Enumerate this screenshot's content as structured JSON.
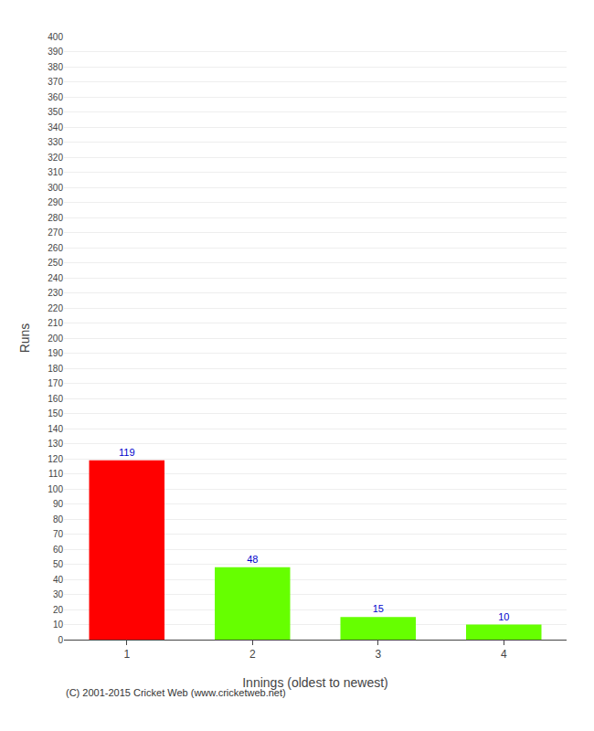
{
  "chart_data": {
    "type": "bar",
    "categories": [
      "1",
      "2",
      "3",
      "4"
    ],
    "values": [
      119,
      48,
      15,
      10
    ],
    "colors": [
      "#ff0000",
      "#66ff00",
      "#66ff00",
      "#66ff00"
    ],
    "xlabel": "Innings (oldest to newest)",
    "ylabel": "Runs",
    "ylim": [
      0,
      400
    ],
    "yticks": [
      0,
      10,
      20,
      30,
      40,
      50,
      60,
      70,
      80,
      90,
      100,
      110,
      120,
      130,
      140,
      150,
      160,
      170,
      180,
      190,
      200,
      210,
      220,
      230,
      240,
      250,
      260,
      270,
      280,
      290,
      300,
      310,
      320,
      330,
      340,
      350,
      360,
      370,
      380,
      390,
      400
    ],
    "grid": true,
    "data_labels": true,
    "annotations": [
      "(C) 2001-2015 Cricket Web (www.cricketweb.net)"
    ]
  }
}
